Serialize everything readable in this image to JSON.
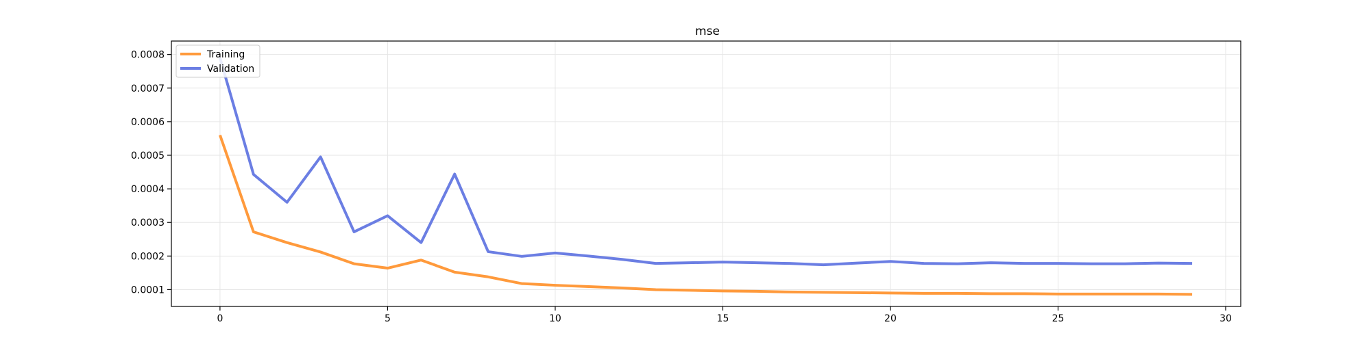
{
  "chart_data": {
    "type": "line",
    "title": "mse",
    "xlabel": "",
    "ylabel": "",
    "xlim": [
      -1.45,
      30.45
    ],
    "ylim": [
      5e-05,
      0.00084
    ],
    "x_ticks": [
      0,
      5,
      10,
      15,
      20,
      25,
      30
    ],
    "x_tick_labels": [
      "0",
      "5",
      "10",
      "15",
      "20",
      "25",
      "30"
    ],
    "y_ticks": [
      0.0001,
      0.0002,
      0.0003,
      0.0004,
      0.0005,
      0.0006,
      0.0007,
      0.0008
    ],
    "y_tick_labels": [
      "0.0001",
      "0.0002",
      "0.0003",
      "0.0004",
      "0.0005",
      "0.0006",
      "0.0007",
      "0.0008"
    ],
    "grid": true,
    "legend_position": "top-left",
    "x": [
      0,
      1,
      2,
      3,
      4,
      5,
      6,
      7,
      8,
      9,
      10,
      11,
      12,
      13,
      14,
      15,
      16,
      17,
      18,
      19,
      20,
      21,
      22,
      23,
      24,
      25,
      26,
      27,
      28,
      29
    ],
    "series": [
      {
        "name": "Training",
        "color": "#ff9a3c",
        "values": [
          0.00056,
          0.000272,
          0.00024,
          0.000212,
          0.000177,
          0.000164,
          0.000188,
          0.000152,
          0.000138,
          0.000118,
          0.000113,
          0.000109,
          0.000105,
          0.0001,
          9.8e-05,
          9.6e-05,
          9.5e-05,
          9.3e-05,
          9.2e-05,
          9.1e-05,
          9e-05,
          8.9e-05,
          8.9e-05,
          8.8e-05,
          8.8e-05,
          8.7e-05,
          8.7e-05,
          8.7e-05,
          8.7e-05,
          8.6e-05
        ]
      },
      {
        "name": "Validation",
        "color": "#6b7ee3",
        "values": [
          0.00079,
          0.000443,
          0.00036,
          0.000495,
          0.000272,
          0.00032,
          0.00024,
          0.000444,
          0.000213,
          0.000199,
          0.000209,
          0.0002,
          0.00019,
          0.000178,
          0.00018,
          0.000182,
          0.00018,
          0.000178,
          0.000174,
          0.000179,
          0.000184,
          0.000178,
          0.000177,
          0.00018,
          0.000178,
          0.000178,
          0.000177,
          0.000177,
          0.000179,
          0.000178
        ]
      }
    ]
  }
}
